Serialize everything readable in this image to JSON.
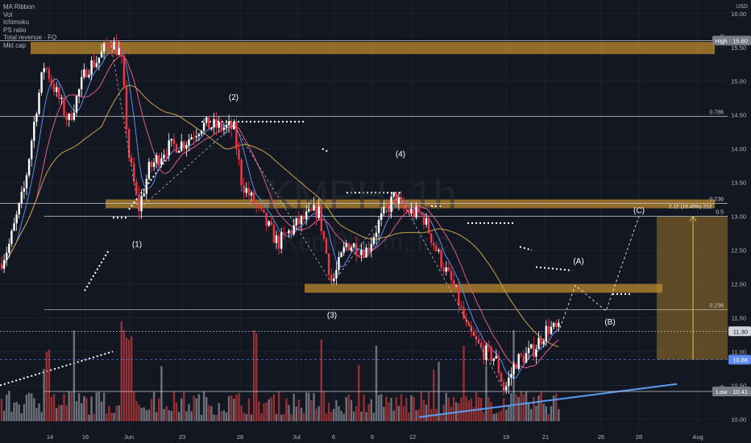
{
  "indicators": [
    "MA Ribbon",
    "Vol",
    "Ichimoku",
    "PS ratio",
    "Total revenue · FQ",
    "Mkt cap"
  ],
  "watermark": "KMPH, 1h",
  "watermark_sub": "KemPharm, Inc",
  "currency": "USD",
  "colors": {
    "up": "#26a69a",
    "down": "#ef5350",
    "zone": "#c8922e",
    "candle_up": "#ffffff",
    "candle_down": "#f23645",
    "ma_fast": "#5b8cf0",
    "ma_mid": "#e05a8a",
    "ma_slow": "#c7a248",
    "trend": "#5b9cf0"
  },
  "chart_data": {
    "type": "candlestick",
    "ylim": [
      9.85,
      16.2
    ],
    "y_ticks": [
      "16.00",
      "15.50",
      "15.00",
      "14.50",
      "14.00",
      "13.50",
      "13.00",
      "12.50",
      "12.00",
      "11.50",
      "11.00",
      "10.50",
      "10.00"
    ],
    "x_ticks": [
      "14",
      "16",
      "Jun",
      "23",
      "28",
      "Jul",
      "6",
      "8",
      "12",
      "19",
      "21",
      "26",
      "28",
      "Aug"
    ],
    "price_labels": [
      {
        "text": "High",
        "value": "15.60",
        "price": 15.6
      },
      {
        "text": "",
        "value": "11.30",
        "price": 11.3
      },
      {
        "text": "",
        "value": "10.88",
        "price": 10.88
      },
      {
        "text": "Low",
        "value": "10.41",
        "price": 10.41
      }
    ],
    "fib_levels": [
      {
        "label": "0",
        "price": 15.6
      },
      {
        "label": "0.786",
        "price": 14.48
      },
      {
        "label": "0.236",
        "price": 13.19
      },
      {
        "label": "0.5",
        "price": 13.0
      },
      {
        "label": "0.236",
        "price": 11.62
      },
      {
        "label": "0",
        "price": 10.41
      }
    ],
    "wave_labels": [
      "(1)",
      "(2)",
      "(3)",
      "(4)",
      "(A)",
      "(B)",
      "(C)"
    ],
    "measure_label": "2.12 (19.45%) 212",
    "key_prices": {
      "start": 12.3,
      "peak1": 15.6,
      "low1": 13.1,
      "top2": 14.35,
      "low3": 12.0,
      "top4": 13.3,
      "low5": 10.42,
      "last": 11.3,
      "proj_A": 11.98,
      "proj_B": 11.6,
      "proj_C": 13.0
    }
  }
}
